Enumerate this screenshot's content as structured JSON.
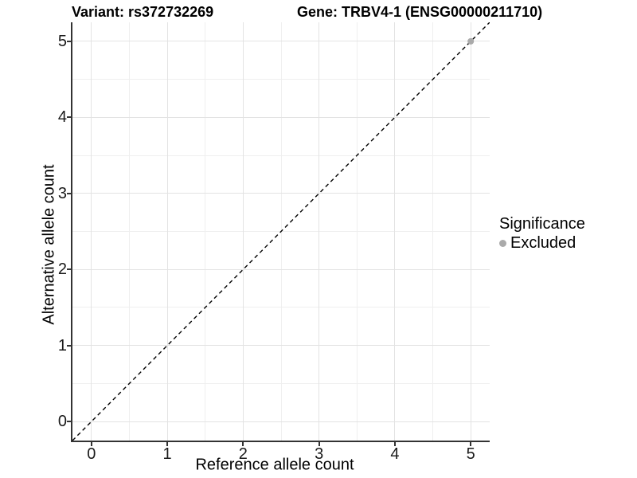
{
  "header": {
    "variant_title": "Variant: rs372732269",
    "gene_title": "Gene: TRBV4-1 (ENSG00000211710)"
  },
  "chart_data": {
    "type": "scatter",
    "title_left": "Variant: rs372732269",
    "title_right": "Gene: TRBV4-1 (ENSG00000211710)",
    "xlabel": "Reference allele count",
    "ylabel": "Alternative allele count",
    "xlim": [
      -0.25,
      5.25
    ],
    "ylim": [
      -0.25,
      5.25
    ],
    "x_ticks": [
      0,
      1,
      2,
      3,
      4,
      5
    ],
    "y_ticks": [
      0,
      1,
      2,
      3,
      4,
      5
    ],
    "grid": "major and minor gridlines, white panel background",
    "reference_line": {
      "kind": "identity y=x",
      "style": "dashed",
      "color": "#000000",
      "x1": -0.25,
      "y1": -0.25,
      "x2": 5.25,
      "y2": 5.25
    },
    "points": [
      {
        "x": 5,
        "y": 5,
        "significance": "Excluded",
        "color": "#aaaaaa"
      }
    ],
    "legend": {
      "position": "right",
      "title": "Significance",
      "items": [
        {
          "label": "Excluded",
          "color": "#aaaaaa"
        }
      ]
    }
  },
  "colors": {
    "axis_line": "#333333",
    "grid_major": "#e3e3e3",
    "grid_minor": "#efefef",
    "point_gray": "#aaaaaa",
    "text": "#000000"
  }
}
